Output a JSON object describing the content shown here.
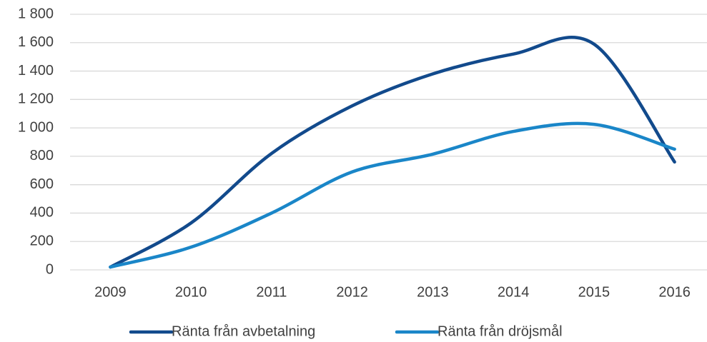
{
  "chart_data": {
    "type": "line",
    "categories": [
      "2009",
      "2010",
      "2011",
      "2012",
      "2013",
      "2014",
      "2015",
      "2016"
    ],
    "series": [
      {
        "name": "Ränta från avbetalning",
        "color": "#124a8c",
        "values": [
          20,
          330,
          820,
          1155,
          1380,
          1520,
          1590,
          760
        ]
      },
      {
        "name": "Ränta från dröjsmål",
        "color": "#1a86c8",
        "values": [
          20,
          160,
          400,
          690,
          815,
          975,
          1025,
          850
        ]
      }
    ],
    "ylim": [
      0,
      1800
    ],
    "yticks": [
      0,
      200,
      400,
      600,
      800,
      {
        "value": 1000,
        "label": "1 000"
      },
      {
        "value": 1200,
        "label": "1 200"
      },
      {
        "value": 1400,
        "label": "1 400"
      },
      {
        "value": 1600,
        "label": "1 600"
      },
      {
        "value": 1800,
        "label": "1 800"
      }
    ],
    "grid": true,
    "legend": "bottom",
    "smooth": true
  }
}
